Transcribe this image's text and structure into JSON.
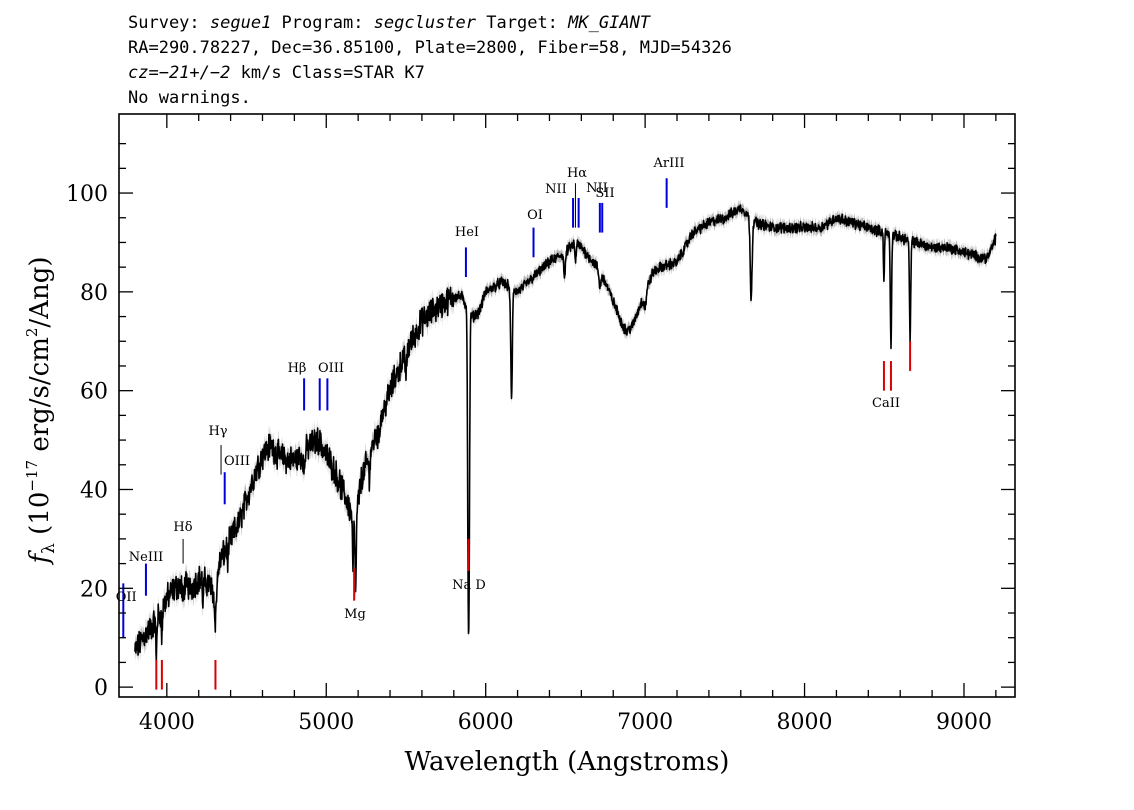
{
  "header": {
    "line1": {
      "survey_label": "Survey: ",
      "survey": "segue1",
      "program_label": " Program: ",
      "program": "segcluster",
      "target_label": " Target: ",
      "target": "MK_GIANT"
    },
    "line2": "RA=290.78227, Dec=36.85100, Plate=2800, Fiber=58, MJD=54326",
    "line3": {
      "cz_label": "cz",
      "cz_value": "=−21+/−2",
      "cz_rest": " km/s Class=STAR K7"
    },
    "line4": "No warnings."
  },
  "chart_data": {
    "type": "line",
    "xlabel": "Wavelength (Angstroms)",
    "ylabel_parts": {
      "f": "f",
      "sub": "λ",
      "a": " (10",
      "exp": "−17",
      "b": " erg/s/cm",
      "exp2": "2",
      "c": "/Ang)"
    },
    "xlim": [
      3700,
      9320
    ],
    "ylim": [
      -2,
      116
    ],
    "xticks": [
      4000,
      5000,
      6000,
      7000,
      8000,
      9000
    ],
    "xtick_labels": [
      "4000",
      "5000",
      "6000",
      "7000",
      "8000",
      "9000"
    ],
    "yticks": [
      0,
      20,
      40,
      60,
      80,
      100
    ],
    "ytick_labels": [
      "0",
      "20",
      "40",
      "60",
      "80",
      "100"
    ],
    "grid": false,
    "series": [
      {
        "color": "#000000",
        "error_color": "#b8b8b8",
        "continuum": [
          [
            3800,
            7
          ],
          [
            3850,
            10
          ],
          [
            3900,
            12
          ],
          [
            3960,
            15
          ],
          [
            4000,
            18
          ],
          [
            4050,
            20
          ],
          [
            4100,
            21
          ],
          [
            4150,
            20
          ],
          [
            4200,
            22
          ],
          [
            4260,
            21
          ],
          [
            4300,
            19
          ],
          [
            4330,
            25
          ],
          [
            4400,
            30
          ],
          [
            4450,
            33
          ],
          [
            4500,
            38
          ],
          [
            4550,
            43
          ],
          [
            4600,
            47
          ],
          [
            4650,
            49
          ],
          [
            4700,
            47
          ],
          [
            4750,
            46
          ],
          [
            4800,
            46
          ],
          [
            4850,
            47
          ],
          [
            4900,
            49
          ],
          [
            4950,
            50
          ],
          [
            5000,
            47
          ],
          [
            5050,
            44
          ],
          [
            5100,
            40
          ],
          [
            5150,
            36
          ],
          [
            5180,
            33
          ],
          [
            5220,
            42
          ],
          [
            5300,
            50
          ],
          [
            5400,
            60
          ],
          [
            5500,
            68
          ],
          [
            5600,
            74
          ],
          [
            5700,
            77
          ],
          [
            5800,
            79
          ],
          [
            5850,
            79
          ],
          [
            5880,
            77
          ],
          [
            5920,
            75
          ],
          [
            5960,
            76
          ],
          [
            6000,
            80
          ],
          [
            6100,
            82
          ],
          [
            6200,
            80
          ],
          [
            6300,
            83
          ],
          [
            6400,
            86
          ],
          [
            6500,
            88
          ],
          [
            6560,
            90
          ],
          [
            6600,
            89
          ],
          [
            6650,
            87
          ],
          [
            6700,
            85
          ],
          [
            6750,
            82
          ],
          [
            6800,
            78
          ],
          [
            6850,
            74
          ],
          [
            6880,
            72
          ],
          [
            6920,
            73
          ],
          [
            7000,
            80
          ],
          [
            7050,
            84
          ],
          [
            7100,
            85
          ],
          [
            7200,
            86
          ],
          [
            7300,
            92
          ],
          [
            7400,
            94
          ],
          [
            7500,
            95
          ],
          [
            7600,
            97
          ],
          [
            7700,
            94
          ],
          [
            7800,
            93
          ],
          [
            7900,
            93
          ],
          [
            8000,
            93
          ],
          [
            8100,
            93
          ],
          [
            8200,
            95
          ],
          [
            8300,
            94
          ],
          [
            8400,
            93
          ],
          [
            8500,
            92
          ],
          [
            8600,
            91
          ],
          [
            8700,
            90
          ],
          [
            8800,
            89
          ],
          [
            8900,
            89
          ],
          [
            9000,
            88
          ],
          [
            9100,
            87
          ],
          [
            9150,
            87
          ],
          [
            9200,
            91
          ]
        ],
        "absorption": [
          [
            3934,
            8,
            3
          ],
          [
            3969,
            6,
            3
          ],
          [
            4101,
            4,
            4
          ],
          [
            4227,
            5,
            3
          ],
          [
            4305,
            6,
            6
          ],
          [
            4383,
            3,
            4
          ],
          [
            4861,
            4,
            4
          ],
          [
            5167,
            10,
            3
          ],
          [
            5184,
            14,
            4
          ],
          [
            5270,
            4,
            5
          ],
          [
            5328,
            3,
            4
          ],
          [
            5500,
            4,
            6
          ],
          [
            5890,
            44,
            4
          ],
          [
            5896,
            44,
            4
          ],
          [
            6162,
            22,
            5
          ],
          [
            6495,
            5,
            5
          ],
          [
            6563,
            4,
            4
          ],
          [
            6716,
            3,
            6
          ],
          [
            7000,
            3,
            8
          ],
          [
            7665,
            16,
            6
          ],
          [
            8498,
            10,
            3
          ],
          [
            8542,
            22,
            4
          ],
          [
            8662,
            20,
            4
          ]
        ]
      }
    ],
    "lines_blue": [
      {
        "label": "OII",
        "x": 3727,
        "y_top": 21,
        "y_bottom": 10
      },
      {
        "label": "NeIII",
        "x": 3869,
        "y_top": 25,
        "y_bottom": 18.5
      },
      {
        "label": "Hδ",
        "x": 4102,
        "y_top": 30,
        "y_bottom": 25
      },
      {
        "label": "Hγ",
        "x": 4340,
        "y_top": 49,
        "y_bottom": 43
      },
      {
        "label": "OIII",
        "x": 4363,
        "y_top": 43.5,
        "y_bottom": 37
      },
      {
        "label": "Hβ",
        "x": 4861,
        "y_top": 62.5,
        "y_bottom": 56
      },
      {
        "label": "OIII",
        "x": 4959,
        "y_top": 62.5,
        "y_bottom": 56
      },
      {
        "label": "OIII",
        "x": 5007,
        "y_top": 62.5,
        "y_bottom": 56
      },
      {
        "label": "HeI",
        "x": 5876,
        "y_top": 89,
        "y_bottom": 83
      },
      {
        "label": "OI",
        "x": 6300,
        "y_top": 93,
        "y_bottom": 87
      },
      {
        "label": "NII",
        "x": 6548,
        "y_top": 99,
        "y_bottom": 93
      },
      {
        "label": "Hα",
        "x": 6563,
        "y_top": 102,
        "y_bottom": 93
      },
      {
        "label": "NII",
        "x": 6583,
        "y_top": 99,
        "y_bottom": 93
      },
      {
        "label": "SII",
        "x": 6716,
        "y_top": 98,
        "y_bottom": 92
      },
      {
        "label": "SII",
        "x": 6731,
        "y_top": 98,
        "y_bottom": 92
      },
      {
        "label": "ArIII",
        "x": 7135,
        "y_top": 103,
        "y_bottom": 97
      }
    ],
    "lines_red": [
      {
        "label": "",
        "x": 3934,
        "y_top": 5.5,
        "y_bottom": -0.5
      },
      {
        "label": "",
        "x": 3969,
        "y_top": 5.5,
        "y_bottom": -0.5
      },
      {
        "label": "",
        "x": 4305,
        "y_top": 5.5,
        "y_bottom": -0.5
      },
      {
        "label": "Mg",
        "x": 5175,
        "y_top": 24,
        "y_bottom": 17.5
      },
      {
        "label": "Na D",
        "x": 5893,
        "y_top": 30,
        "y_bottom": 23.5
      },
      {
        "label": "CaII",
        "x": 8498,
        "y_top": 66,
        "y_bottom": 60
      },
      {
        "label": "",
        "x": 8542,
        "y_top": 66,
        "y_bottom": 60
      },
      {
        "label": "",
        "x": 8662,
        "y_top": 70,
        "y_bottom": 64
      }
    ],
    "line_label_positions": {
      "OII": "left-edge",
      "NeIII": "above",
      "Hδ": "above",
      "Hγ": "above",
      "Mg": "below",
      "Na D": "below",
      "CaII": "below"
    },
    "colors": {
      "emission": "#0000dd",
      "absorption": "#dd0000",
      "weak": "#000000"
    }
  }
}
